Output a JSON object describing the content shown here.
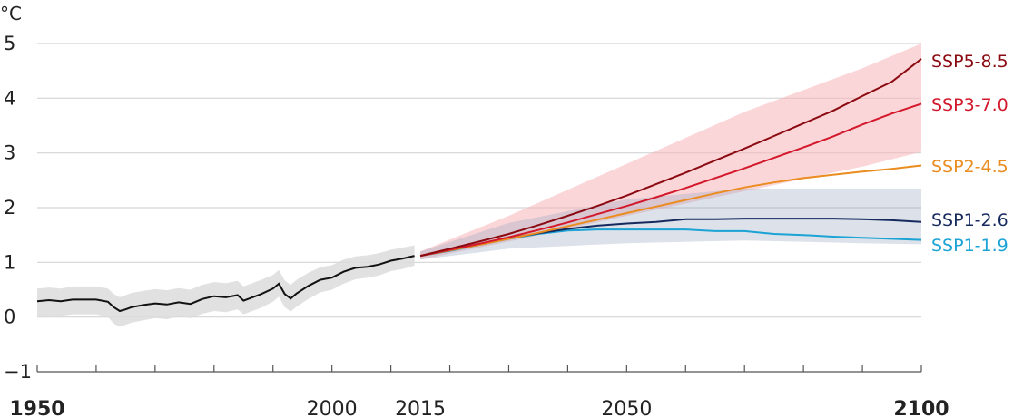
{
  "chart_data": {
    "type": "line",
    "unit": "°C",
    "xlim": [
      1950,
      2100
    ],
    "ylim": [
      -1,
      5
    ],
    "y_ticks": [
      -1,
      0,
      1,
      2,
      3,
      4,
      5
    ],
    "y_tick_labels": [
      "−1",
      "0",
      "1",
      "2",
      "3",
      "4",
      "5"
    ],
    "x_tick_labels": [
      {
        "value": 1950,
        "label": "1950",
        "bold": true
      },
      {
        "value": 2000,
        "label": "2000",
        "bold": false
      },
      {
        "value": 2015,
        "label": "2015",
        "bold": false
      },
      {
        "value": 2050,
        "label": "2050",
        "bold": false
      },
      {
        "value": 2100,
        "label": "2100",
        "bold": true
      }
    ],
    "x_minor_ticks": [
      1950,
      1960,
      1970,
      1980,
      1990,
      2000,
      2010,
      2020,
      2030,
      2040,
      2050,
      2060,
      2070,
      2080,
      2090,
      2100
    ],
    "grid": true,
    "historical": {
      "color": "#111111",
      "band_color": "#dcdcdc",
      "x": [
        1950,
        1952,
        1954,
        1956,
        1958,
        1960,
        1962,
        1963,
        1964,
        1965,
        1966,
        1968,
        1970,
        1972,
        1974,
        1976,
        1978,
        1980,
        1982,
        1984,
        1985,
        1986,
        1988,
        1990,
        1991,
        1992,
        1993,
        1994,
        1996,
        1998,
        2000,
        2002,
        2004,
        2006,
        2008,
        2010,
        2012,
        2014
      ],
      "y": [
        0.29,
        0.31,
        0.29,
        0.32,
        0.32,
        0.32,
        0.28,
        0.18,
        0.11,
        0.14,
        0.18,
        0.22,
        0.25,
        0.23,
        0.27,
        0.24,
        0.33,
        0.38,
        0.36,
        0.4,
        0.3,
        0.34,
        0.42,
        0.52,
        0.61,
        0.42,
        0.34,
        0.43,
        0.57,
        0.68,
        0.72,
        0.83,
        0.9,
        0.92,
        0.96,
        1.03,
        1.07,
        1.12
      ],
      "low": [
        0.02,
        0.03,
        0.02,
        0.05,
        0.05,
        0.05,
        0.0,
        -0.12,
        -0.18,
        -0.14,
        -0.1,
        -0.06,
        -0.02,
        -0.04,
        0.01,
        -0.02,
        0.06,
        0.11,
        0.09,
        0.14,
        0.05,
        0.09,
        0.17,
        0.28,
        0.37,
        0.18,
        0.1,
        0.19,
        0.33,
        0.45,
        0.5,
        0.61,
        0.69,
        0.72,
        0.76,
        0.84,
        0.88,
        0.94
      ],
      "high": [
        0.52,
        0.54,
        0.52,
        0.56,
        0.56,
        0.56,
        0.52,
        0.42,
        0.36,
        0.4,
        0.44,
        0.48,
        0.51,
        0.49,
        0.53,
        0.5,
        0.59,
        0.64,
        0.62,
        0.66,
        0.56,
        0.6,
        0.68,
        0.77,
        0.86,
        0.67,
        0.59,
        0.68,
        0.81,
        0.91,
        0.95,
        1.05,
        1.11,
        1.13,
        1.17,
        1.23,
        1.27,
        1.31
      ]
    },
    "bands": [
      {
        "name": "SSP5-8.5",
        "color": "#f8b4b8",
        "opacity": 0.55,
        "x": [
          2015,
          2030,
          2050,
          2070,
          2090,
          2100
        ],
        "low": [
          1.05,
          1.38,
          1.85,
          2.3,
          2.75,
          3.02
        ],
        "high": [
          1.2,
          1.85,
          2.8,
          3.75,
          4.55,
          5.0
        ]
      },
      {
        "name": "SSP1-2.6",
        "color": "#9aa8c4",
        "opacity": 0.35,
        "x": [
          2015,
          2030,
          2050,
          2070,
          2090,
          2100
        ],
        "low": [
          1.05,
          1.25,
          1.35,
          1.4,
          1.35,
          1.33
        ],
        "high": [
          1.2,
          1.72,
          2.15,
          2.35,
          2.35,
          2.35
        ]
      }
    ],
    "series": [
      {
        "name": "SSP5-8.5",
        "color": "#8b0a12",
        "x": [
          2015,
          2020,
          2025,
          2030,
          2035,
          2040,
          2045,
          2050,
          2055,
          2060,
          2065,
          2070,
          2075,
          2080,
          2085,
          2090,
          2095,
          2100
        ],
        "y": [
          1.12,
          1.25,
          1.38,
          1.52,
          1.68,
          1.85,
          2.03,
          2.22,
          2.43,
          2.64,
          2.86,
          3.08,
          3.31,
          3.54,
          3.77,
          4.04,
          4.3,
          4.72
        ]
      },
      {
        "name": "SSP3-7.0",
        "color": "#d3182b",
        "x": [
          2015,
          2020,
          2025,
          2030,
          2035,
          2040,
          2045,
          2050,
          2055,
          2060,
          2065,
          2070,
          2075,
          2080,
          2085,
          2090,
          2095,
          2100
        ],
        "y": [
          1.12,
          1.23,
          1.34,
          1.46,
          1.59,
          1.73,
          1.88,
          2.03,
          2.19,
          2.36,
          2.54,
          2.72,
          2.91,
          3.1,
          3.3,
          3.52,
          3.72,
          3.9
        ]
      },
      {
        "name": "SSP2-4.5",
        "color": "#ea8c1f",
        "x": [
          2015,
          2020,
          2025,
          2030,
          2035,
          2040,
          2045,
          2050,
          2055,
          2060,
          2065,
          2070,
          2075,
          2080,
          2085,
          2090,
          2095,
          2100
        ],
        "y": [
          1.12,
          1.22,
          1.32,
          1.43,
          1.54,
          1.66,
          1.78,
          1.9,
          2.02,
          2.14,
          2.26,
          2.37,
          2.46,
          2.54,
          2.6,
          2.66,
          2.71,
          2.77
        ]
      },
      {
        "name": "SSP1-2.6",
        "color": "#172a5e",
        "x": [
          2015,
          2020,
          2025,
          2030,
          2035,
          2040,
          2045,
          2050,
          2055,
          2060,
          2065,
          2070,
          2075,
          2080,
          2085,
          2090,
          2095,
          2100
        ],
        "y": [
          1.12,
          1.22,
          1.33,
          1.44,
          1.53,
          1.61,
          1.67,
          1.71,
          1.74,
          1.79,
          1.79,
          1.8,
          1.8,
          1.8,
          1.8,
          1.79,
          1.77,
          1.74
        ]
      },
      {
        "name": "SSP1-1.9",
        "color": "#1aa3d4",
        "x": [
          2015,
          2020,
          2025,
          2030,
          2035,
          2040,
          2045,
          2050,
          2055,
          2060,
          2065,
          2070,
          2075,
          2080,
          2085,
          2090,
          2095,
          2100
        ],
        "y": [
          1.12,
          1.21,
          1.32,
          1.43,
          1.52,
          1.58,
          1.6,
          1.6,
          1.6,
          1.6,
          1.57,
          1.57,
          1.52,
          1.5,
          1.47,
          1.45,
          1.43,
          1.41
        ]
      }
    ],
    "series_labels": [
      {
        "text": "SSP5-8.5",
        "color": "#8b0a12"
      },
      {
        "text": "SSP3-7.0",
        "color": "#d3182b"
      },
      {
        "text": "SSP2-4.5",
        "color": "#ea8c1f"
      },
      {
        "text": "SSP1-2.6",
        "color": "#172a5e"
      },
      {
        "text": "SSP1-1.9",
        "color": "#1aa3d4"
      }
    ]
  }
}
